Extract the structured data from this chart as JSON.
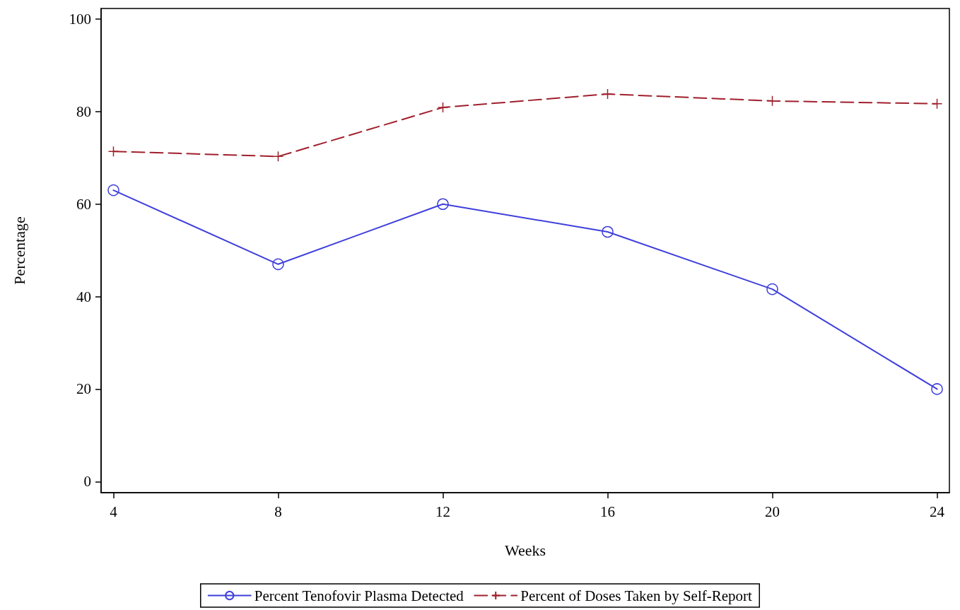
{
  "chart_data": {
    "type": "line",
    "xlabel": "Weeks",
    "ylabel": "Percentage",
    "x": [
      4,
      8,
      12,
      16,
      20,
      24
    ],
    "series": [
      {
        "name": "Percent Tenofovir Plasma Detected",
        "color": "#3f3fdc",
        "values": [
          63,
          47,
          60,
          54,
          41.6,
          20
        ],
        "marker": "circle",
        "line_style": "solid"
      },
      {
        "name": "Percent of Doses Taken by Self-Report",
        "color": "#a0202c",
        "values": [
          71.4,
          70.3,
          80.9,
          83.8,
          82.3,
          81.7
        ],
        "marker": "cross",
        "line_style": "dashed"
      }
    ],
    "xlim": [
      3.7,
      24.3
    ],
    "xticks": [
      4,
      8,
      12,
      16,
      20,
      24
    ],
    "ylim": [
      -2.4,
      102.3
    ],
    "yticks": [
      0,
      20,
      40,
      60,
      80,
      100
    ],
    "grid": false,
    "legend": "bottom"
  }
}
